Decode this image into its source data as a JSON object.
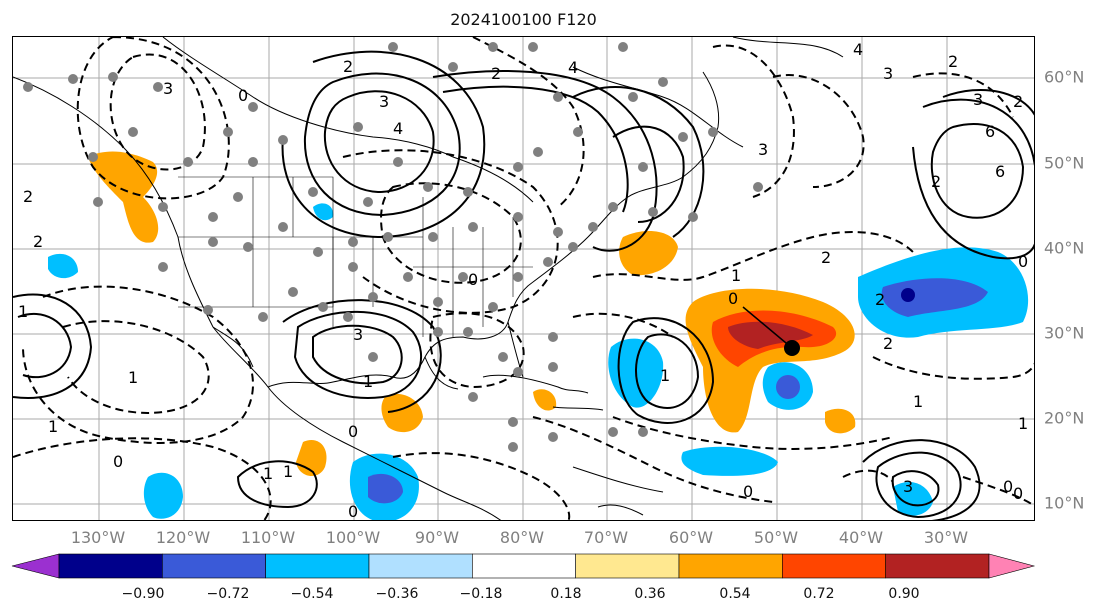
{
  "title": "2024100100 F120",
  "lon_labels": [
    "130°W",
    "120°W",
    "110°W",
    "100°W",
    "90°W",
    "80°W",
    "70°W",
    "60°W",
    "50°W",
    "40°W",
    "30°W"
  ],
  "lat_labels": [
    "60°N",
    "50°N",
    "40°N",
    "30°N",
    "20°N",
    "10°N"
  ],
  "colorbar": {
    "ticks": [
      "−0.90",
      "−0.72",
      "−0.54",
      "−0.36",
      "−0.18",
      "0.18",
      "0.36",
      "0.54",
      "0.72",
      "0.90"
    ],
    "colors": [
      "#9b30d0",
      "#00008b",
      "#3a5ad8",
      "#00bfff",
      "#b0e0ff",
      "#ffffff",
      "#ffe890",
      "#ffa500",
      "#ff4500",
      "#b22222",
      "#ff82b4"
    ]
  },
  "contour_labels": [
    "2",
    "2",
    "3",
    "4",
    "4",
    "6",
    "3",
    "2",
    "1",
    "1",
    "0",
    "1",
    "2",
    "0",
    "0",
    "1",
    "0",
    "3",
    "3",
    "4",
    "2",
    "2",
    "3",
    "1",
    "2",
    "2",
    "1",
    "1",
    "2",
    "3",
    "3",
    "0",
    "1",
    "0",
    "1",
    "0",
    "1",
    "0",
    "6",
    "0",
    "0",
    "2"
  ],
  "storm_marker": "tropical-cyclone-position"
}
